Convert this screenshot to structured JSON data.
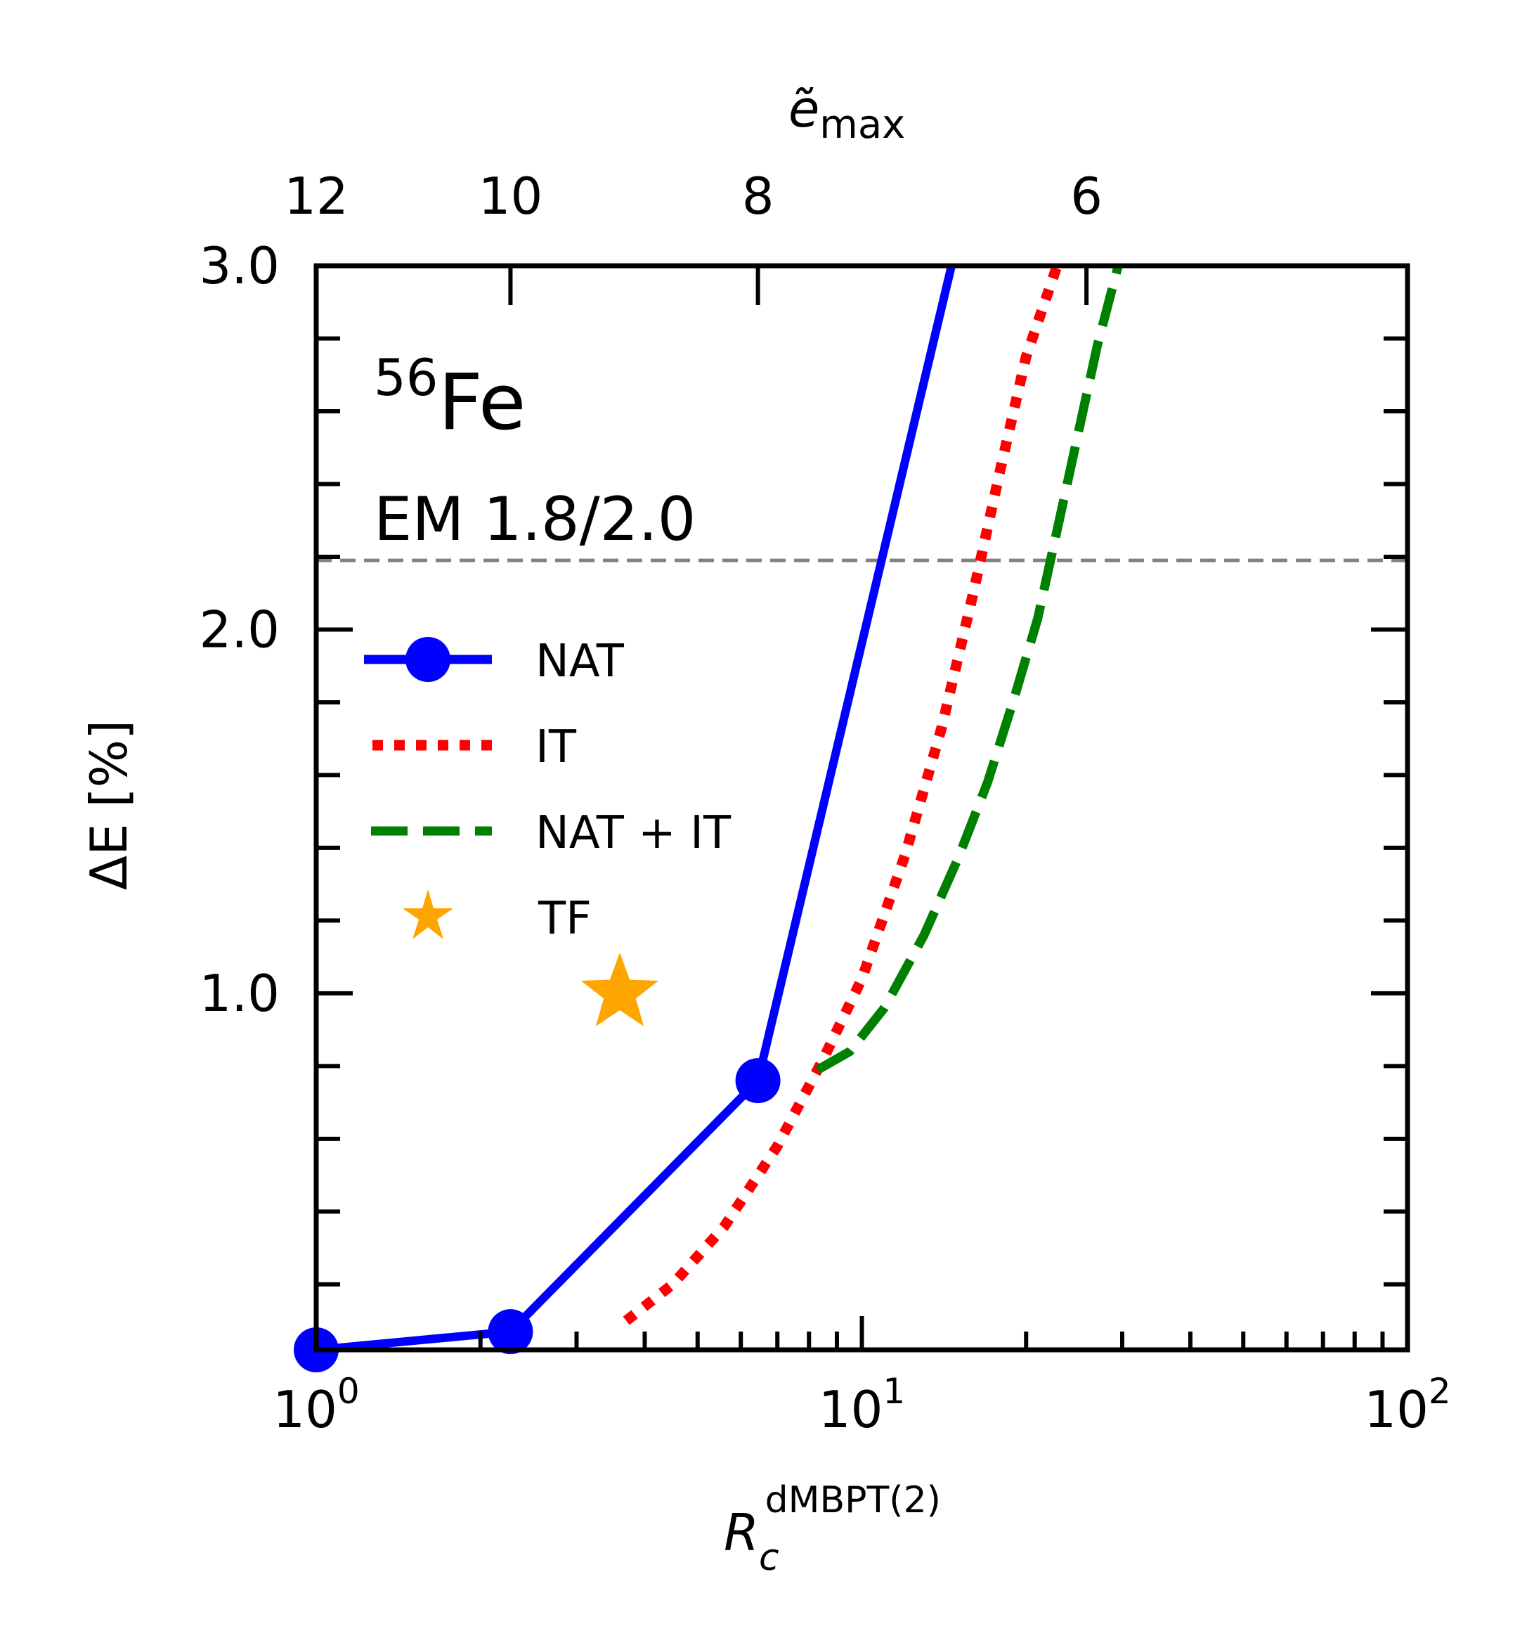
{
  "chart_data": {
    "type": "line",
    "xscale": "log",
    "xlim": [
      1,
      100
    ],
    "ylim": [
      0.02,
      3.0
    ],
    "xlabel": {
      "base": "R",
      "sub": "c",
      "sup": "dMBPT(2)"
    },
    "ylabel": "ΔE [%]",
    "top_axis": {
      "label": {
        "base": "ẽ",
        "sub": "max"
      },
      "ticks": [
        {
          "label": "12",
          "x": 1.0
        },
        {
          "label": "10",
          "x": 2.27
        },
        {
          "label": "8",
          "x": 6.45
        },
        {
          "label": "6",
          "x": 25.8
        }
      ]
    },
    "x_ticks": [
      {
        "value": 1,
        "base": "10",
        "exp": "0"
      },
      {
        "value": 10,
        "base": "10",
        "exp": "1"
      },
      {
        "value": 100,
        "base": "10",
        "exp": "2"
      }
    ],
    "y_ticks": [
      {
        "value": 1.0,
        "label": "1.0"
      },
      {
        "value": 2.0,
        "label": "2.0"
      },
      {
        "value": 3.0,
        "label": "3.0"
      }
    ],
    "annotations": {
      "nucleus_mass": "56",
      "nucleus_symbol": "Fe",
      "interaction": "EM 1.8/2.0"
    },
    "reference_line": {
      "y": 2.19,
      "color": "#808080",
      "style": "dashed"
    },
    "legend": {
      "position": "left"
    },
    "series": [
      {
        "name": "NAT",
        "color": "#0000ff",
        "style": "solid-markers",
        "x": [
          1.0,
          2.27,
          6.45,
          14.6
        ],
        "y": [
          0.02,
          0.07,
          0.76,
          3.0
        ],
        "marker_count": 3
      },
      {
        "name": "IT",
        "color": "#ff0000",
        "style": "dotted",
        "x": [
          3.7,
          4.5,
          5.6,
          7.0,
          8.5,
          10.0,
          12.0,
          14.0,
          16.0,
          18.0,
          20.0,
          22.8
        ],
        "y": [
          0.1,
          0.2,
          0.36,
          0.58,
          0.82,
          1.04,
          1.38,
          1.73,
          2.1,
          2.45,
          2.75,
          3.0
        ]
      },
      {
        "name": "NAT + IT",
        "color": "#008000",
        "style": "dashed",
        "x": [
          8.3,
          9.5,
          11.0,
          13.0,
          15.0,
          17.0,
          19.0,
          21.0,
          23.0,
          25.0,
          27.0,
          29.5
        ],
        "y": [
          0.79,
          0.84,
          0.96,
          1.16,
          1.37,
          1.58,
          1.81,
          2.03,
          2.3,
          2.55,
          2.78,
          3.0
        ]
      },
      {
        "name": "TF",
        "color": "#ffa500",
        "style": "star",
        "x": [
          3.6
        ],
        "y": [
          1.0
        ]
      }
    ]
  }
}
